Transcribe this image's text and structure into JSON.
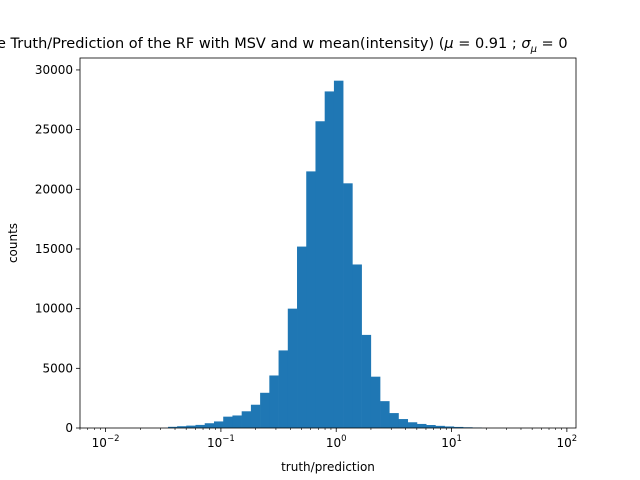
{
  "chart_data": {
    "type": "bar",
    "title": "e Truth/Prediction of the RF with MSV and w mean(intensity) (",
    "title_mu": "μ",
    "title_mid": " = 0.91 ; ",
    "title_sigma": "σ",
    "title_sigma_sub": "μ",
    "title_tail": " = 0",
    "xlabel": "truth/prediction",
    "ylabel": "counts",
    "x_scale": "log",
    "xlim": [
      0.006,
      120
    ],
    "ylim": [
      0,
      31000
    ],
    "y_ticks": [
      0,
      5000,
      10000,
      15000,
      20000,
      25000,
      30000
    ],
    "x_ticks": [
      {
        "base": "10",
        "exp": "−2",
        "value": 0.01
      },
      {
        "base": "10",
        "exp": "−1",
        "value": 0.1
      },
      {
        "base": "10",
        "exp": "0",
        "value": 1
      },
      {
        "base": "10",
        "exp": "1",
        "value": 10
      },
      {
        "base": "10",
        "exp": "2",
        "value": 100
      }
    ],
    "bar_color": "#1f77b4",
    "grid": false,
    "bins": [
      {
        "x0": 0.0348,
        "x1": 0.0417,
        "count": 100
      },
      {
        "x0": 0.0417,
        "x1": 0.0501,
        "count": 150
      },
      {
        "x0": 0.0501,
        "x1": 0.0602,
        "count": 200
      },
      {
        "x0": 0.0602,
        "x1": 0.0724,
        "count": 260
      },
      {
        "x0": 0.0724,
        "x1": 0.0871,
        "count": 400
      },
      {
        "x0": 0.0871,
        "x1": 0.1047,
        "count": 550
      },
      {
        "x0": 0.1047,
        "x1": 0.1259,
        "count": 950
      },
      {
        "x0": 0.1259,
        "x1": 0.1514,
        "count": 1050
      },
      {
        "x0": 0.1514,
        "x1": 0.182,
        "count": 1400
      },
      {
        "x0": 0.182,
        "x1": 0.2188,
        "count": 1950
      },
      {
        "x0": 0.2188,
        "x1": 0.263,
        "count": 2950
      },
      {
        "x0": 0.263,
        "x1": 0.3162,
        "count": 4400
      },
      {
        "x0": 0.3162,
        "x1": 0.3802,
        "count": 6500
      },
      {
        "x0": 0.3802,
        "x1": 0.4571,
        "count": 10000
      },
      {
        "x0": 0.4571,
        "x1": 0.5495,
        "count": 15200
      },
      {
        "x0": 0.5495,
        "x1": 0.6607,
        "count": 21500
      },
      {
        "x0": 0.6607,
        "x1": 0.7943,
        "count": 25700
      },
      {
        "x0": 0.7943,
        "x1": 0.955,
        "count": 28200
      },
      {
        "x0": 0.955,
        "x1": 1.148,
        "count": 29100
      },
      {
        "x0": 1.148,
        "x1": 1.38,
        "count": 20500
      },
      {
        "x0": 1.38,
        "x1": 1.66,
        "count": 13700
      },
      {
        "x0": 1.66,
        "x1": 1.995,
        "count": 7800
      },
      {
        "x0": 1.995,
        "x1": 2.399,
        "count": 4300
      },
      {
        "x0": 2.399,
        "x1": 2.884,
        "count": 2250
      },
      {
        "x0": 2.884,
        "x1": 3.467,
        "count": 1250
      },
      {
        "x0": 3.467,
        "x1": 4.169,
        "count": 750
      },
      {
        "x0": 4.169,
        "x1": 5.012,
        "count": 480
      },
      {
        "x0": 5.012,
        "x1": 6.026,
        "count": 340
      },
      {
        "x0": 6.026,
        "x1": 7.244,
        "count": 250
      },
      {
        "x0": 7.244,
        "x1": 8.71,
        "count": 180
      },
      {
        "x0": 8.71,
        "x1": 10.47,
        "count": 130
      },
      {
        "x0": 10.47,
        "x1": 12.59,
        "count": 90
      },
      {
        "x0": 12.59,
        "x1": 15.14,
        "count": 60
      },
      {
        "x0": 15.14,
        "x1": 18.2,
        "count": 35
      }
    ]
  }
}
